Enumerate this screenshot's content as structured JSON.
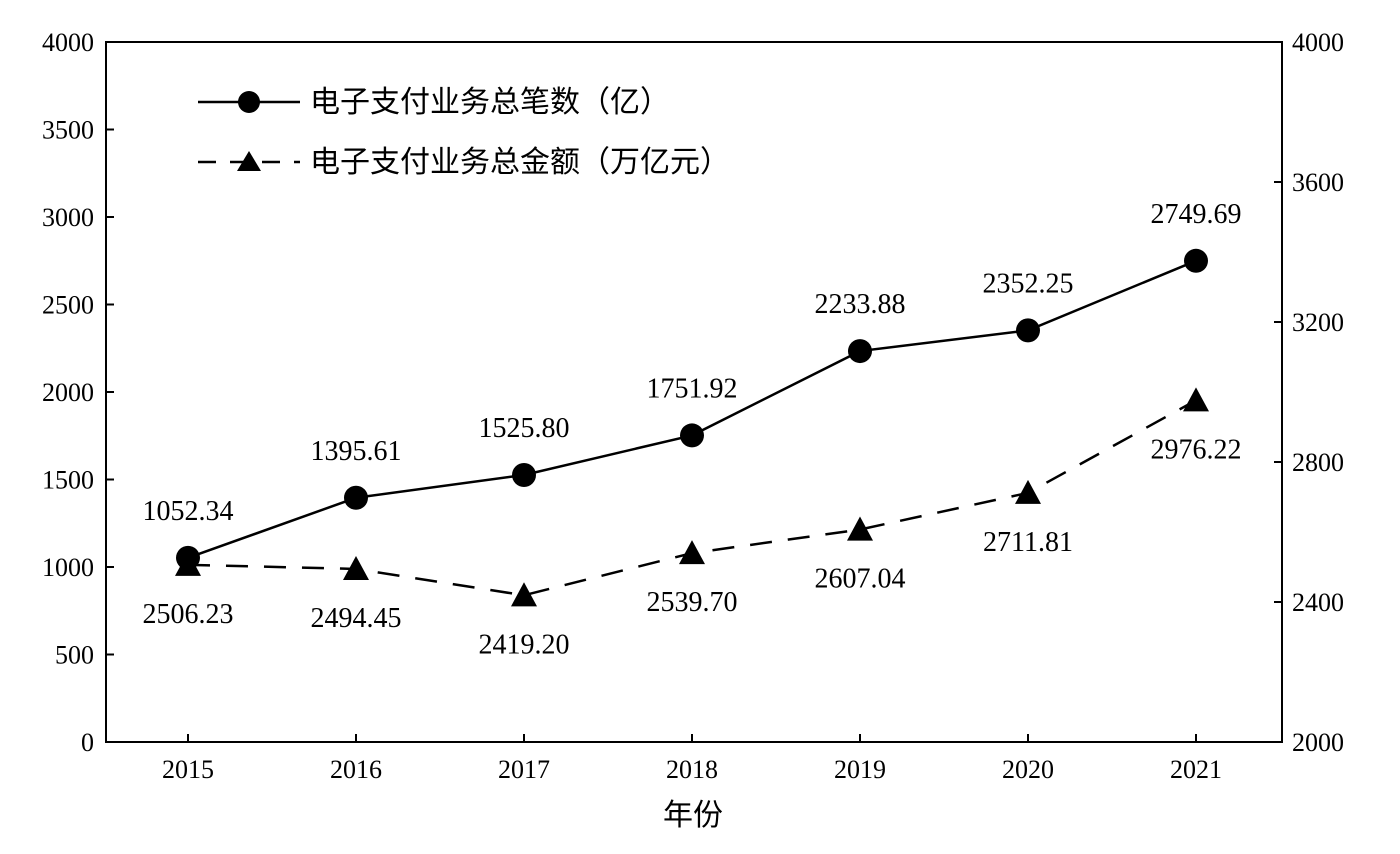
{
  "chart_data": {
    "type": "line",
    "categories": [
      "2015",
      "2016",
      "2017",
      "2018",
      "2019",
      "2020",
      "2021"
    ],
    "xlabel": "年份",
    "y_left": {
      "ylim": [
        0,
        4000
      ],
      "ticks": [
        "0",
        "500",
        "1000",
        "1500",
        "2000",
        "2500",
        "3000",
        "3500",
        "4000"
      ]
    },
    "y_right": {
      "ylim": [
        2000,
        4000
      ],
      "ticks": [
        "2000",
        "2400",
        "2800",
        "3200",
        "3600",
        "4000"
      ]
    },
    "series": [
      {
        "name": "电子支付业务总笔数（亿）",
        "axis": "left",
        "marker": "circle",
        "line": "solid",
        "values": [
          1052.34,
          1395.61,
          1525.8,
          1751.92,
          2233.88,
          2352.25,
          2749.69
        ],
        "labels": [
          "1052.34",
          "1395.61",
          "1525.80",
          "1751.92",
          "2233.88",
          "2352.25",
          "2749.69"
        ]
      },
      {
        "name": "电子支付业务总金额（万亿元）",
        "axis": "right",
        "marker": "triangle",
        "line": "dashed",
        "values": [
          2506.23,
          2494.45,
          2419.2,
          2539.7,
          2607.04,
          2711.81,
          2976.22
        ],
        "labels": [
          "2506.23",
          "2494.45",
          "2419.20",
          "2539.70",
          "2607.04",
          "2711.81",
          "2976.22"
        ]
      }
    ],
    "legend_position": "top-left",
    "grid": false
  }
}
